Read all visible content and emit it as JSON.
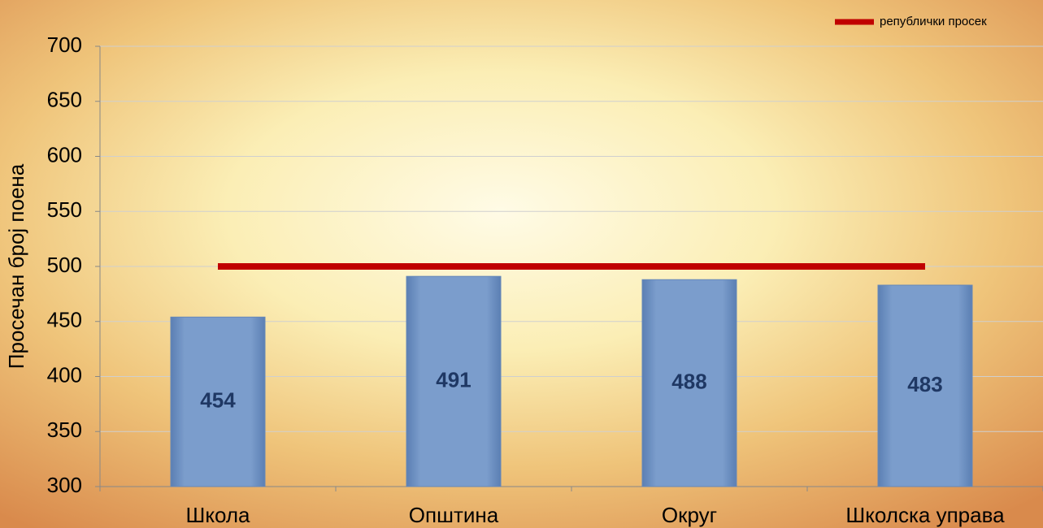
{
  "chart_data": {
    "type": "bar",
    "y_label": "Просечан број поена",
    "categories": [
      "Школа",
      "Општина",
      "Округ",
      "Школска управа"
    ],
    "values": [
      454,
      491,
      488,
      483
    ],
    "color": "#7a9ccb",
    "series": [
      {
        "name": "републички просек",
        "color": "#c00000",
        "values": [
          500,
          500,
          500,
          500
        ]
      }
    ],
    "ylim": [
      300,
      700
    ],
    "yticks": [
      300,
      350,
      400,
      450,
      500,
      550,
      600,
      650,
      700
    ],
    "grid": true,
    "legend": "top-right"
  }
}
